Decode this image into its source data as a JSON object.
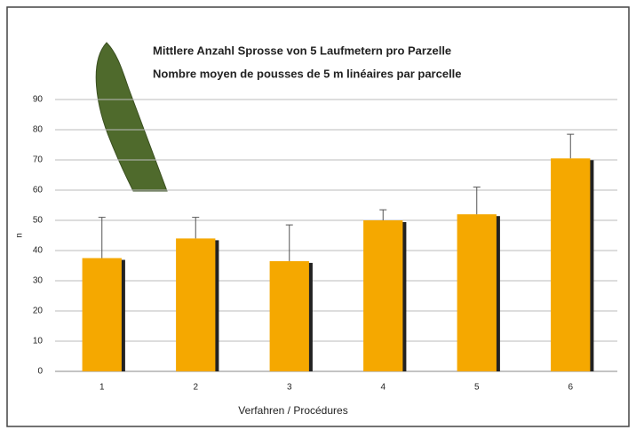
{
  "chart_data": {
    "type": "bar",
    "title": "Mittlere Anzahl Sprosse von 5 Laufmetern pro Parzelle",
    "subtitle": "Nombre moyen de pousses de 5 m linéaires par parcelle",
    "x_label": "Verfahren / Procédures",
    "y_label": "n",
    "categories": [
      "1",
      "2",
      "3",
      "4",
      "5",
      "6"
    ],
    "values": [
      37.5,
      44,
      36.5,
      50,
      52,
      70.5
    ],
    "errors": [
      13.5,
      7,
      12,
      3.5,
      9,
      8
    ],
    "color": "#f5a800",
    "ylim": [
      0,
      90
    ],
    "yticks": [
      0,
      10,
      20,
      30,
      40,
      50,
      60,
      70,
      80,
      90
    ],
    "grid": true
  }
}
